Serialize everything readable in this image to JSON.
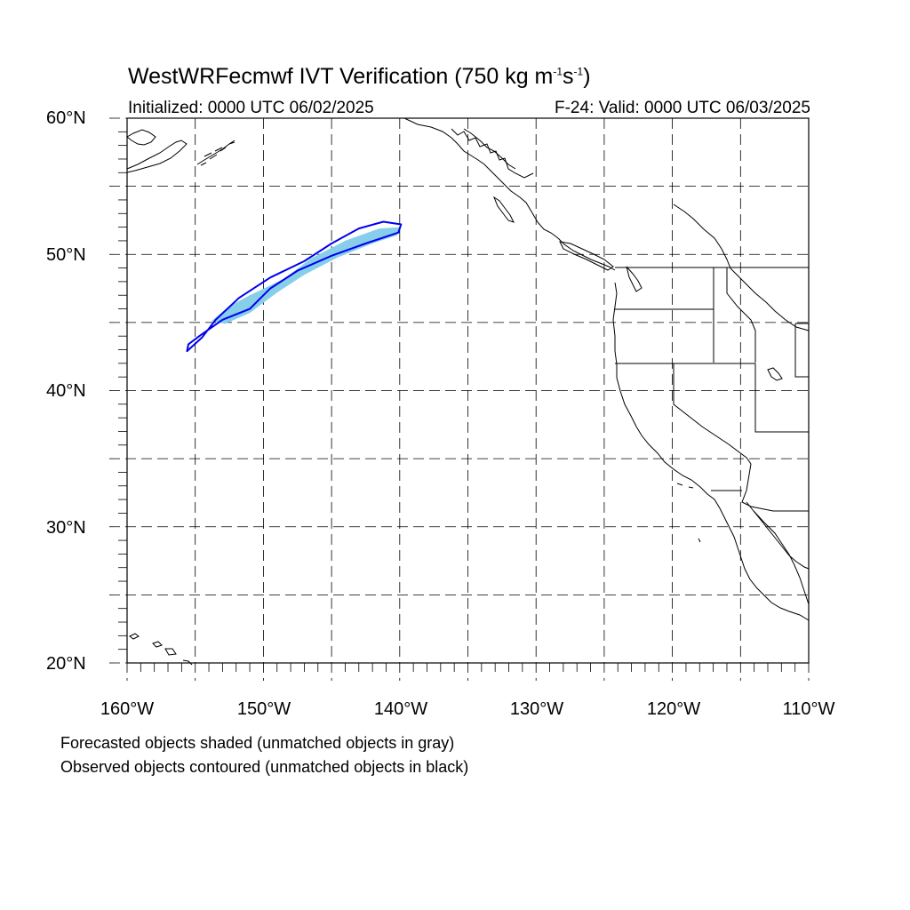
{
  "title": {
    "main": "WestWRFecmwf IVT Verification (750 kg m",
    "sup1": "-1",
    "mid": "s",
    "sup2": "-1",
    "end": ")"
  },
  "init_text": "Initialized: 0000 UTC 06/02/2025",
  "valid_text": "F-24: Valid: 0000 UTC 06/03/2025",
  "lat_labels": [
    "60°N",
    "50°N",
    "40°N",
    "30°N",
    "20°N"
  ],
  "lon_labels": [
    "160°W",
    "150°W",
    "140°W",
    "130°W",
    "120°W",
    "110°W"
  ],
  "notes": [
    "Forecasted objects shaded (unmatched objects in gray)",
    "Observed objects contoured (unmatched objects in black)"
  ],
  "map": {
    "lon_range": [
      -160,
      -110
    ],
    "lat_range": [
      20,
      60
    ],
    "grid_spacing_deg": 5,
    "grid_style": "dashed",
    "forecast_fill_color": "#87CEEB",
    "observed_contour_color": "#0000EE",
    "coastline_color": "#000000"
  },
  "forecast_object": {
    "status": "matched",
    "lonlat": [
      [
        -153.8,
        45.1
      ],
      [
        -152.5,
        46.2
      ],
      [
        -151.0,
        47.0
      ],
      [
        -148.5,
        48.2
      ],
      [
        -146.5,
        49.7
      ],
      [
        -144.0,
        51.0
      ],
      [
        -141.5,
        51.9
      ],
      [
        -139.9,
        52.0
      ],
      [
        -140.2,
        51.4
      ],
      [
        -142.0,
        50.8
      ],
      [
        -144.5,
        49.8
      ],
      [
        -147.0,
        48.5
      ],
      [
        -149.0,
        47.2
      ],
      [
        -151.0,
        45.7
      ],
      [
        -152.8,
        44.9
      ]
    ]
  },
  "observed_object": {
    "status": "matched",
    "lonlat": [
      [
        -155.6,
        42.9
      ],
      [
        -154.5,
        43.9
      ],
      [
        -153.5,
        45.2
      ],
      [
        -151.8,
        46.8
      ],
      [
        -149.5,
        48.3
      ],
      [
        -147.0,
        49.5
      ],
      [
        -145.0,
        50.8
      ],
      [
        -143.0,
        51.9
      ],
      [
        -141.2,
        52.4
      ],
      [
        -139.9,
        52.2
      ],
      [
        -140.1,
        51.6
      ],
      [
        -142.5,
        50.8
      ],
      [
        -145.0,
        49.9
      ],
      [
        -147.5,
        48.8
      ],
      [
        -149.5,
        47.5
      ],
      [
        -151.0,
        46.0
      ],
      [
        -153.0,
        45.2
      ],
      [
        -154.7,
        44.0
      ],
      [
        -155.5,
        43.4
      ]
    ]
  }
}
